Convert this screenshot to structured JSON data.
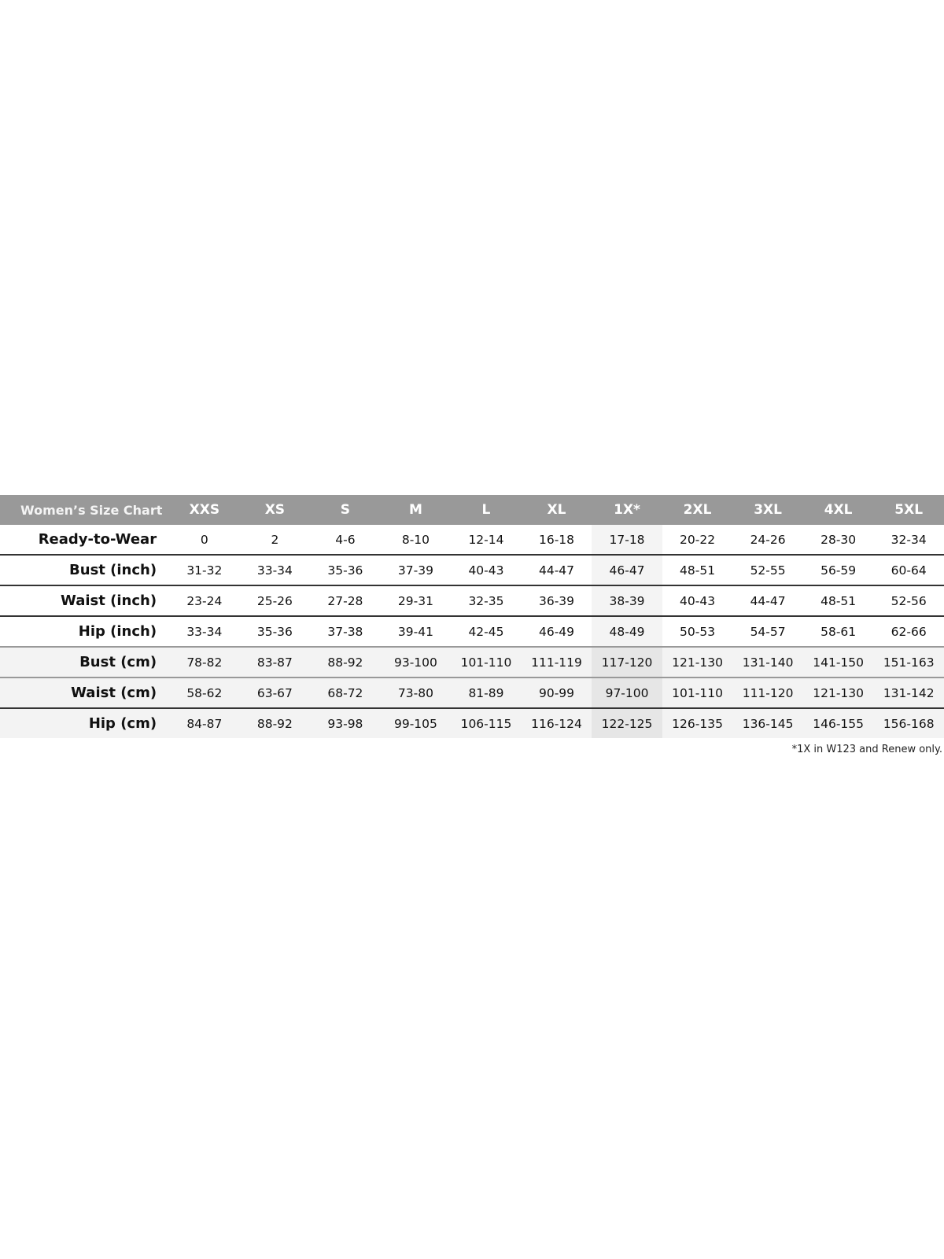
{
  "chart_data": {
    "type": "table",
    "title": "Women’s Size Chart",
    "columns": [
      "XXS",
      "XS",
      "S",
      "M",
      "L",
      "XL",
      "1X*",
      "2XL",
      "3XL",
      "4XL",
      "5XL"
    ],
    "highlighted_column": "1X*",
    "rows": [
      {
        "label": "Ready-to-Wear",
        "values": [
          "0",
          "2",
          "4-6",
          "8-10",
          "12-14",
          "16-18",
          "17-18",
          "20-22",
          "24-26",
          "28-30",
          "32-34"
        ]
      },
      {
        "label": "Bust (inch)",
        "values": [
          "31-32",
          "33-34",
          "35-36",
          "37-39",
          "40-43",
          "44-47",
          "46-47",
          "48-51",
          "52-55",
          "56-59",
          "60-64"
        ]
      },
      {
        "label": "Waist (inch)",
        "values": [
          "23-24",
          "25-26",
          "27-28",
          "29-31",
          "32-35",
          "36-39",
          "38-39",
          "40-43",
          "44-47",
          "48-51",
          "52-56"
        ]
      },
      {
        "label": "Hip (inch)",
        "values": [
          "33-34",
          "35-36",
          "37-38",
          "39-41",
          "42-45",
          "46-49",
          "48-49",
          "50-53",
          "54-57",
          "58-61",
          "62-66"
        ]
      },
      {
        "label": "Bust (cm)",
        "values": [
          "78-82",
          "83-87",
          "88-92",
          "93-100",
          "101-110",
          "111-119",
          "117-120",
          "121-130",
          "131-140",
          "141-150",
          "151-163"
        ]
      },
      {
        "label": "Waist (cm)",
        "values": [
          "58-62",
          "63-67",
          "68-72",
          "73-80",
          "81-89",
          "90-99",
          "97-100",
          "101-110",
          "111-120",
          "121-130",
          "131-142"
        ]
      },
      {
        "label": "Hip (cm)",
        "values": [
          "84-87",
          "88-92",
          "93-98",
          "99-105",
          "106-115",
          "116-124",
          "122-125",
          "126-135",
          "136-145",
          "146-155",
          "156-168"
        ]
      }
    ],
    "footnote": "*1X in W123 and Renew only.",
    "colors": {
      "header_bg": "#999999",
      "header_text": "#ffffff",
      "cm_rows_bg": "#f3f3f3",
      "highlight_bg": "#e6e6e6"
    }
  }
}
